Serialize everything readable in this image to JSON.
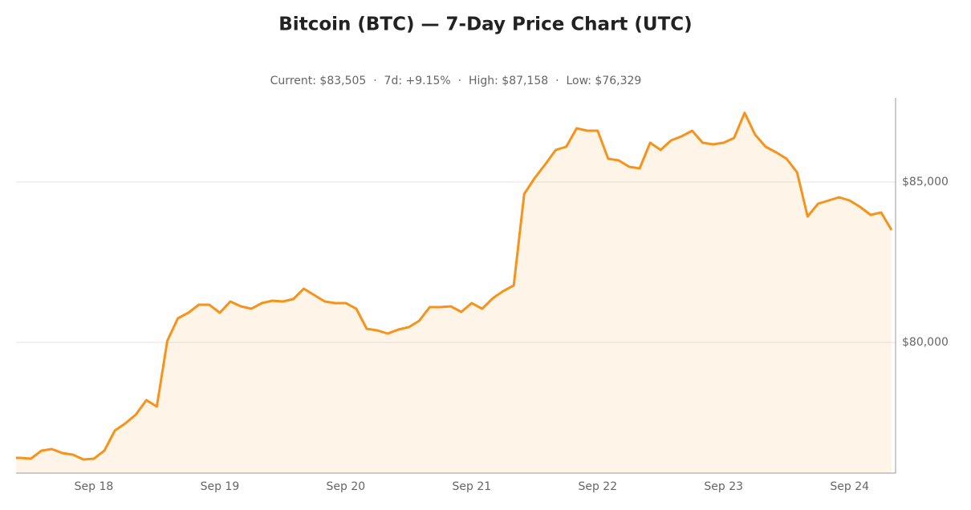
{
  "chart_data": {
    "type": "line",
    "title": "Bitcoin (BTC) — 7-Day Price Chart (UTC)",
    "subtitle": "Current: $83,505  ·  7d: +9.15%  ·  High: $87,158  ·  Low: $76,329",
    "categories": [
      null,
      null,
      null,
      null,
      null,
      null,
      null,
      "Sep 18",
      null,
      null,
      null,
      null,
      null,
      null,
      null,
      null,
      null,
      null,
      null,
      "Sep 19",
      null,
      null,
      null,
      null,
      null,
      null,
      null,
      null,
      null,
      null,
      null,
      "Sep 20",
      null,
      null,
      null,
      null,
      null,
      null,
      null,
      null,
      null,
      null,
      null,
      "Sep 21",
      null,
      null,
      null,
      null,
      null,
      null,
      null,
      null,
      null,
      null,
      null,
      "Sep 22",
      null,
      null,
      null,
      null,
      null,
      null,
      null,
      null,
      null,
      null,
      null,
      "Sep 23",
      null,
      null,
      null,
      null,
      null,
      null,
      null,
      null,
      null,
      null,
      null,
      "Sep 24",
      null,
      null,
      null,
      null
    ],
    "series": [
      {
        "name": "BTC",
        "color": "#f7931a",
        "values": [
          76400,
          76375,
          76625,
          76675,
          76550,
          76500,
          76350,
          76375,
          76625,
          77250,
          77475,
          77750,
          78200,
          78000,
          80050,
          80750,
          80925,
          81175,
          81175,
          80925,
          81275,
          81125,
          81050,
          81225,
          81300,
          81275,
          81350,
          81675,
          81475,
          81275,
          81225,
          81225,
          81050,
          80425,
          80375,
          80275,
          80400,
          80475,
          80675,
          81100,
          81100,
          81125,
          80950,
          81225,
          81050,
          81375,
          81600,
          81775,
          84625,
          85125,
          85550,
          86000,
          86100,
          86675,
          86600,
          86600,
          85725,
          85675,
          85475,
          85425,
          86225,
          86000,
          86300,
          86425,
          86600,
          86225,
          86175,
          86225,
          86375,
          87158,
          86475,
          86100,
          85925,
          85725,
          85300,
          83925,
          84325,
          84425,
          84525,
          84425,
          84225,
          83975,
          84050,
          83505
        ]
      }
    ],
    "ylim": [
      75925,
      87625
    ],
    "yticks": [
      {
        "value": 80000,
        "label": "$80,000"
      },
      {
        "value": 85000,
        "label": "$85,000"
      }
    ],
    "grid": true
  }
}
